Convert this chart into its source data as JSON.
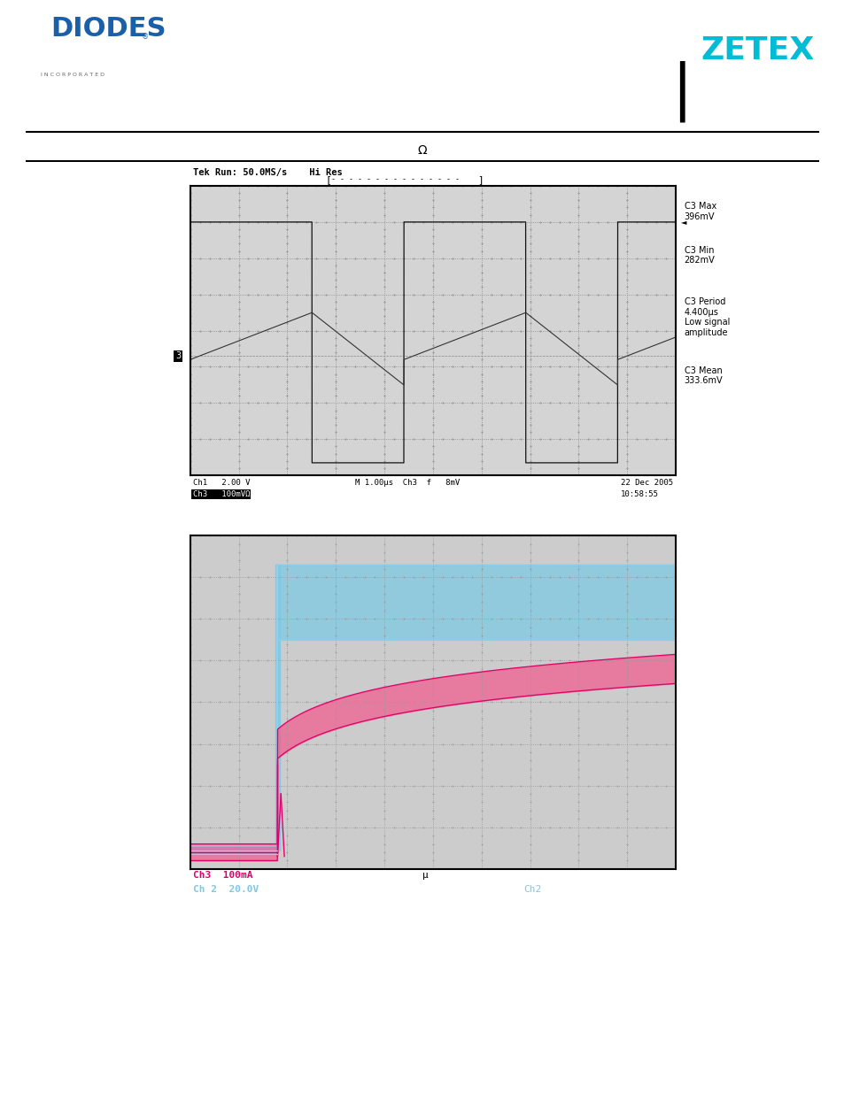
{
  "fig_bg": "#ffffff",
  "header_omega_text": "Ω",
  "scope1": {
    "tek_text": "Tek Run: 50.0MS/s    Hi Res",
    "side_text1": "C3 Max\n396mV",
    "side_text2": "C3 Min\n282mV",
    "side_text3": "C3 Period\n4.400μs\nLow signal\namplitude",
    "side_text4": "C3 Mean\n333.6mV",
    "bottom_text1": "Ch1   2.00 V",
    "bottom_text2": "Ch3   100mVΩ",
    "bottom_text3": "M 1.00μs  Ch3  f   8mV",
    "bottom_text4": "22 Dec 2005",
    "bottom_text5": "10:58:55"
  },
  "scope2": {
    "blue_band_color": "#7EC8E3",
    "pink_band_color": "#F06090",
    "pink_line_color": "#E0006A",
    "blue_line_color": "#90D0F0",
    "bottom_text1": "Ch3  100mA",
    "bottom_text2": "Ch 2  20.0V",
    "bottom_text3": "μ",
    "bottom_text4": "Ch2",
    "bottom_color1": "#E0006A",
    "bottom_color2": "#7EC8E3"
  }
}
